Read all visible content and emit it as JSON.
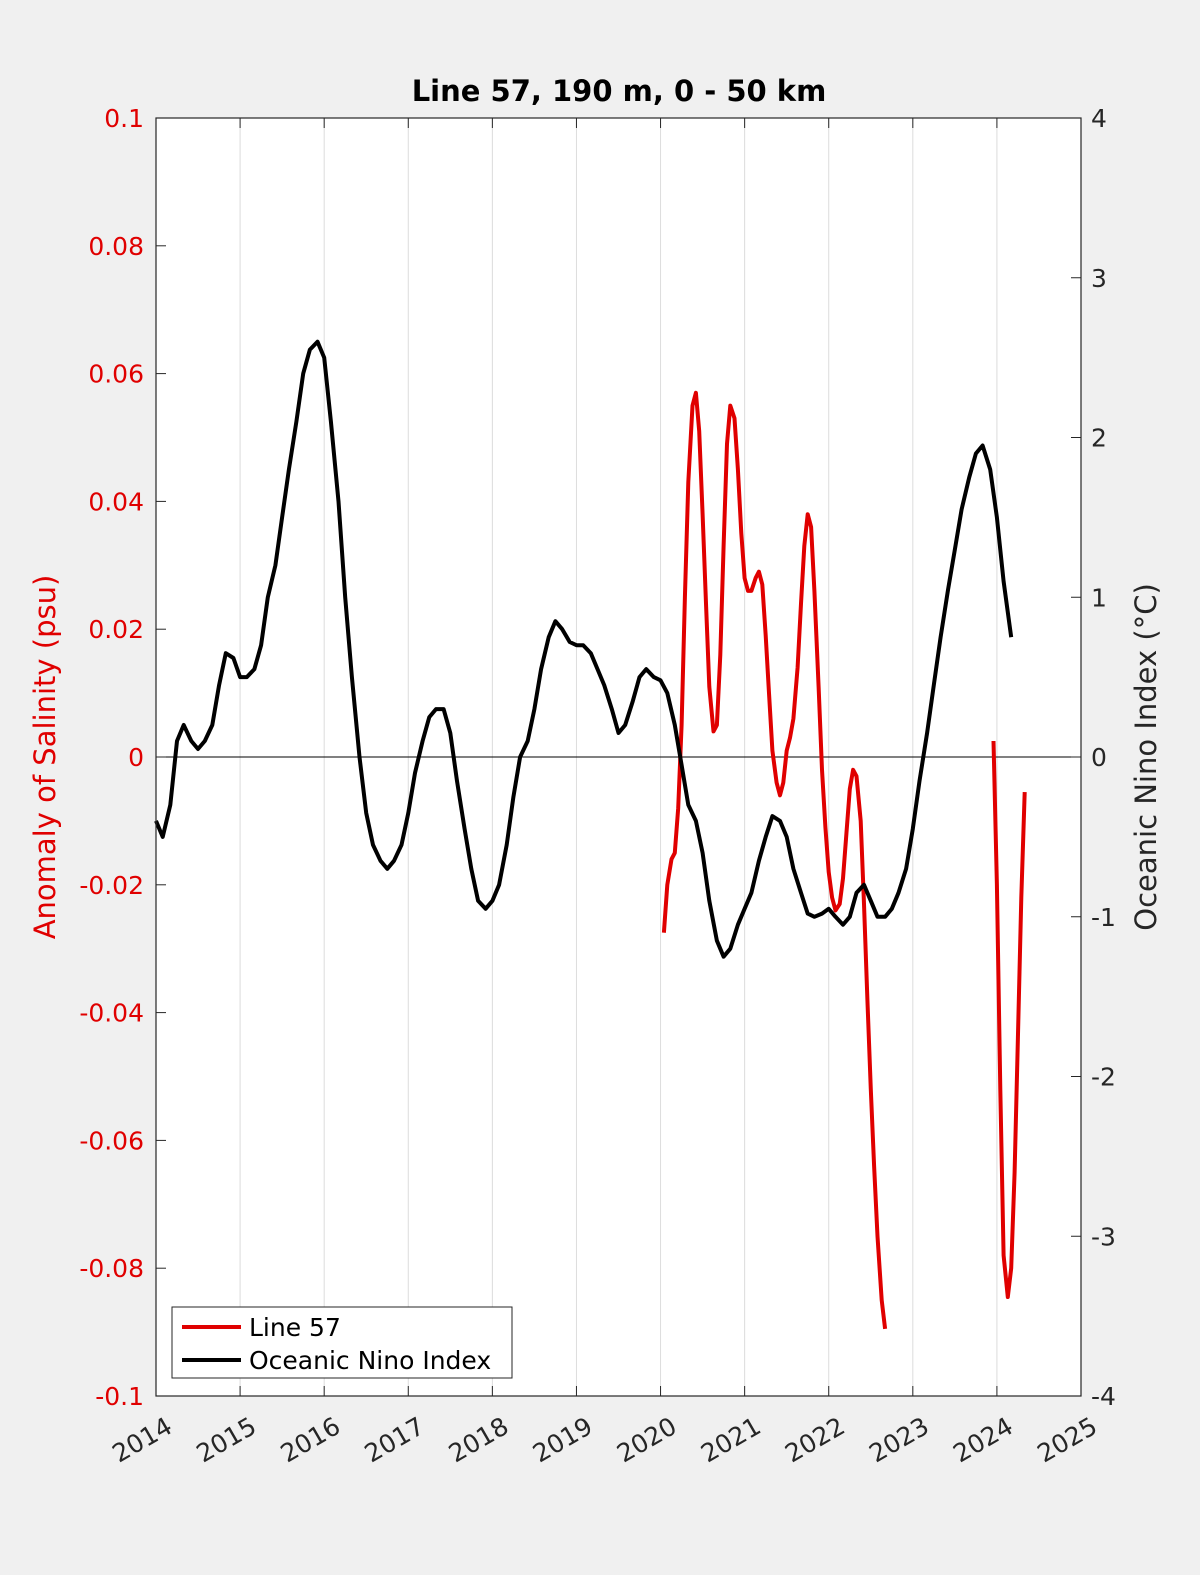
{
  "chart_data": {
    "type": "line",
    "title": "Line 57, 190 m, 0 - 50 km",
    "xlabel": "",
    "ylabel_left": "Anomaly of Salinity (psu)",
    "ylabel_right": "Oceanic Nino Index (°C)",
    "xlim": [
      2014,
      2025
    ],
    "ylim_left": [
      -0.1,
      0.1
    ],
    "ylim_right": [
      -4,
      4
    ],
    "x_ticks": [
      "2014",
      "2015",
      "2016",
      "2017",
      "2018",
      "2019",
      "2020",
      "2021",
      "2022",
      "2023",
      "2024",
      "2025"
    ],
    "y_left_ticks": [
      "0.1",
      "0.08",
      "0.06",
      "0.04",
      "0.02",
      "0",
      "-0.02",
      "-0.04",
      "-0.06",
      "-0.08",
      "-0.1"
    ],
    "y_right_ticks": [
      "4",
      "3",
      "2",
      "1",
      "0",
      "-1",
      "-2",
      "-3",
      "-4"
    ],
    "grid": "vertical",
    "legend_position": "bottom-left",
    "colors": {
      "line57": "#e00000",
      "oni": "#000000"
    },
    "series": [
      {
        "name": "Line 57",
        "axis": "left",
        "segments": [
          [
            [
              2020.04,
              -0.0275
            ],
            [
              2020.08,
              -0.02
            ],
            [
              2020.13,
              -0.016
            ],
            [
              2020.17,
              -0.015
            ],
            [
              2020.21,
              -0.008
            ],
            [
              2020.25,
              0.005
            ],
            [
              2020.29,
              0.025
            ],
            [
              2020.33,
              0.043
            ],
            [
              2020.38,
              0.055
            ],
            [
              2020.42,
              0.057
            ],
            [
              2020.46,
              0.051
            ],
            [
              2020.5,
              0.038
            ],
            [
              2020.54,
              0.024
            ],
            [
              2020.58,
              0.011
            ],
            [
              2020.63,
              0.004
            ],
            [
              2020.67,
              0.005
            ],
            [
              2020.71,
              0.016
            ],
            [
              2020.75,
              0.033
            ],
            [
              2020.79,
              0.049
            ],
            [
              2020.83,
              0.055
            ],
            [
              2020.88,
              0.053
            ],
            [
              2020.92,
              0.045
            ],
            [
              2020.96,
              0.035
            ],
            [
              2021.0,
              0.028
            ],
            [
              2021.04,
              0.026
            ],
            [
              2021.08,
              0.026
            ],
            [
              2021.13,
              0.028
            ],
            [
              2021.17,
              0.029
            ],
            [
              2021.21,
              0.027
            ],
            [
              2021.25,
              0.019
            ],
            [
              2021.29,
              0.01
            ],
            [
              2021.33,
              0.001
            ],
            [
              2021.38,
              -0.004
            ],
            [
              2021.42,
              -0.006
            ],
            [
              2021.46,
              -0.004
            ],
            [
              2021.5,
              0.001
            ],
            [
              2021.54,
              0.003
            ],
            [
              2021.58,
              0.006
            ],
            [
              2021.63,
              0.014
            ],
            [
              2021.67,
              0.024
            ],
            [
              2021.71,
              0.033
            ],
            [
              2021.75,
              0.038
            ],
            [
              2021.79,
              0.036
            ],
            [
              2021.83,
              0.026
            ],
            [
              2021.88,
              0.011
            ],
            [
              2021.92,
              -0.002
            ],
            [
              2021.96,
              -0.011
            ],
            [
              2022.0,
              -0.018
            ],
            [
              2022.04,
              -0.022
            ],
            [
              2022.08,
              -0.024
            ],
            [
              2022.13,
              -0.023
            ],
            [
              2022.17,
              -0.019
            ],
            [
              2022.21,
              -0.012
            ],
            [
              2022.25,
              -0.005
            ],
            [
              2022.29,
              -0.002
            ],
            [
              2022.33,
              -0.003
            ],
            [
              2022.38,
              -0.01
            ],
            [
              2022.42,
              -0.023
            ],
            [
              2022.46,
              -0.038
            ],
            [
              2022.5,
              -0.052
            ],
            [
              2022.54,
              -0.064
            ],
            [
              2022.58,
              -0.075
            ],
            [
              2022.63,
              -0.085
            ],
            [
              2022.67,
              -0.0895
            ]
          ],
          [
            [
              2023.96,
              0.0025
            ],
            [
              2024.0,
              -0.02
            ],
            [
              2024.04,
              -0.052
            ],
            [
              2024.08,
              -0.078
            ],
            [
              2024.13,
              -0.0845
            ],
            [
              2024.17,
              -0.08
            ],
            [
              2024.21,
              -0.065
            ],
            [
              2024.25,
              -0.044
            ],
            [
              2024.29,
              -0.022
            ],
            [
              2024.33,
              -0.0055
            ]
          ]
        ]
      },
      {
        "name": "Oceanic Nino Index",
        "axis": "right",
        "points": [
          [
            2014.0,
            -0.4
          ],
          [
            2014.08,
            -0.5
          ],
          [
            2014.17,
            -0.3
          ],
          [
            2014.25,
            0.1
          ],
          [
            2014.33,
            0.2
          ],
          [
            2014.42,
            0.1
          ],
          [
            2014.5,
            0.05
          ],
          [
            2014.58,
            0.1
          ],
          [
            2014.67,
            0.2
          ],
          [
            2014.75,
            0.45
          ],
          [
            2014.83,
            0.65
          ],
          [
            2014.92,
            0.62
          ],
          [
            2015.0,
            0.5
          ],
          [
            2015.08,
            0.5
          ],
          [
            2015.17,
            0.55
          ],
          [
            2015.25,
            0.7
          ],
          [
            2015.33,
            1.0
          ],
          [
            2015.42,
            1.2
          ],
          [
            2015.5,
            1.5
          ],
          [
            2015.58,
            1.8
          ],
          [
            2015.67,
            2.1
          ],
          [
            2015.75,
            2.4
          ],
          [
            2015.83,
            2.55
          ],
          [
            2015.92,
            2.6
          ],
          [
            2016.0,
            2.5
          ],
          [
            2016.08,
            2.1
          ],
          [
            2016.17,
            1.6
          ],
          [
            2016.25,
            1.0
          ],
          [
            2016.33,
            0.5
          ],
          [
            2016.42,
            0.0
          ],
          [
            2016.5,
            -0.35
          ],
          [
            2016.58,
            -0.55
          ],
          [
            2016.67,
            -0.65
          ],
          [
            2016.75,
            -0.7
          ],
          [
            2016.83,
            -0.65
          ],
          [
            2016.92,
            -0.55
          ],
          [
            2017.0,
            -0.35
          ],
          [
            2017.08,
            -0.1
          ],
          [
            2017.17,
            0.1
          ],
          [
            2017.25,
            0.25
          ],
          [
            2017.33,
            0.3
          ],
          [
            2017.42,
            0.3
          ],
          [
            2017.5,
            0.15
          ],
          [
            2017.58,
            -0.15
          ],
          [
            2017.67,
            -0.45
          ],
          [
            2017.75,
            -0.7
          ],
          [
            2017.83,
            -0.9
          ],
          [
            2017.92,
            -0.95
          ],
          [
            2018.0,
            -0.9
          ],
          [
            2018.08,
            -0.8
          ],
          [
            2018.17,
            -0.55
          ],
          [
            2018.25,
            -0.25
          ],
          [
            2018.33,
            0.0
          ],
          [
            2018.42,
            0.1
          ],
          [
            2018.5,
            0.3
          ],
          [
            2018.58,
            0.55
          ],
          [
            2018.67,
            0.75
          ],
          [
            2018.75,
            0.85
          ],
          [
            2018.83,
            0.8
          ],
          [
            2018.92,
            0.72
          ],
          [
            2019.0,
            0.7
          ],
          [
            2019.08,
            0.7
          ],
          [
            2019.17,
            0.65
          ],
          [
            2019.25,
            0.55
          ],
          [
            2019.33,
            0.45
          ],
          [
            2019.42,
            0.3
          ],
          [
            2019.5,
            0.15
          ],
          [
            2019.58,
            0.2
          ],
          [
            2019.67,
            0.35
          ],
          [
            2019.75,
            0.5
          ],
          [
            2019.83,
            0.55
          ],
          [
            2019.92,
            0.5
          ],
          [
            2020.0,
            0.48
          ],
          [
            2020.08,
            0.4
          ],
          [
            2020.17,
            0.2
          ],
          [
            2020.25,
            -0.05
          ],
          [
            2020.33,
            -0.3
          ],
          [
            2020.42,
            -0.4
          ],
          [
            2020.5,
            -0.6
          ],
          [
            2020.58,
            -0.9
          ],
          [
            2020.67,
            -1.15
          ],
          [
            2020.75,
            -1.25
          ],
          [
            2020.83,
            -1.2
          ],
          [
            2020.92,
            -1.05
          ],
          [
            2021.0,
            -0.95
          ],
          [
            2021.08,
            -0.85
          ],
          [
            2021.17,
            -0.65
          ],
          [
            2021.25,
            -0.5
          ],
          [
            2021.33,
            -0.37
          ],
          [
            2021.42,
            -0.4
          ],
          [
            2021.5,
            -0.5
          ],
          [
            2021.58,
            -0.7
          ],
          [
            2021.67,
            -0.85
          ],
          [
            2021.75,
            -0.98
          ],
          [
            2021.83,
            -1.0
          ],
          [
            2021.92,
            -0.98
          ],
          [
            2022.0,
            -0.95
          ],
          [
            2022.08,
            -1.0
          ],
          [
            2022.17,
            -1.05
          ],
          [
            2022.25,
            -1.0
          ],
          [
            2022.33,
            -0.85
          ],
          [
            2022.42,
            -0.8
          ],
          [
            2022.5,
            -0.9
          ],
          [
            2022.58,
            -1.0
          ],
          [
            2022.67,
            -1.0
          ],
          [
            2022.75,
            -0.95
          ],
          [
            2022.83,
            -0.85
          ],
          [
            2022.92,
            -0.7
          ],
          [
            2023.0,
            -0.45
          ],
          [
            2023.08,
            -0.15
          ],
          [
            2023.17,
            0.15
          ],
          [
            2023.25,
            0.45
          ],
          [
            2023.33,
            0.75
          ],
          [
            2023.42,
            1.05
          ],
          [
            2023.5,
            1.3
          ],
          [
            2023.58,
            1.55
          ],
          [
            2023.67,
            1.75
          ],
          [
            2023.75,
            1.9
          ],
          [
            2023.83,
            1.95
          ],
          [
            2023.92,
            1.8
          ],
          [
            2024.0,
            1.5
          ],
          [
            2024.08,
            1.1
          ],
          [
            2024.17,
            0.75
          ]
        ]
      }
    ]
  }
}
